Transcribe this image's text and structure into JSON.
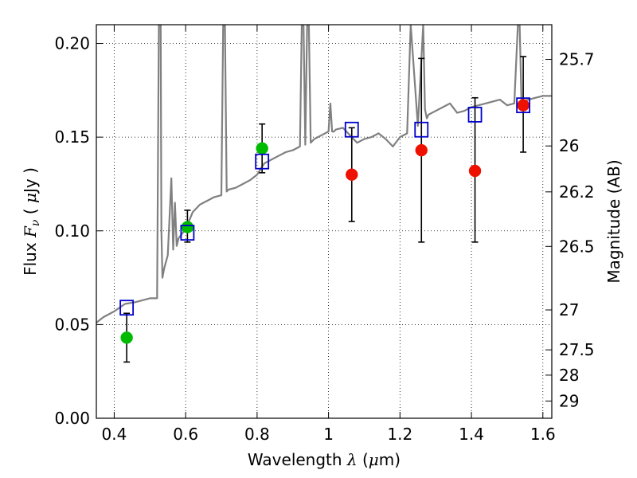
{
  "chart_data": {
    "type": "scatter",
    "xlabel": "Wavelength  λ (μm)",
    "ylabel": "Flux  Fν  ( μJy )",
    "y2label": "Magnitude (AB)",
    "xlim": [
      0.35,
      1.625
    ],
    "ylim": [
      0.0,
      0.21
    ],
    "x_ticks": [
      0.4,
      0.6,
      0.8,
      1.0,
      1.2,
      1.4,
      1.6
    ],
    "x_tick_labels": [
      "0.4",
      "0.6",
      "0.8",
      "1",
      "1.2",
      "1.4",
      "1.6"
    ],
    "y_ticks": [
      0.0,
      0.05,
      0.1,
      0.15,
      0.2
    ],
    "y_tick_labels": [
      "0.00",
      "0.05",
      "0.10",
      "0.15",
      "0.20"
    ],
    "y2_ticks": [
      {
        "label": "25.7",
        "flux": 0.1915
      },
      {
        "label": "26",
        "flux": 0.1453
      },
      {
        "label": "26.2",
        "flux": 0.1208
      },
      {
        "label": "26.5",
        "flux": 0.0917
      },
      {
        "label": "27",
        "flux": 0.0578
      },
      {
        "label": "27.5",
        "flux": 0.0365
      },
      {
        "label": "28",
        "flux": 0.023
      },
      {
        "label": "29",
        "flux": 0.0092
      }
    ],
    "grid": true,
    "series": [
      {
        "style": "line",
        "color": "#808080",
        "x": [
          0.35,
          0.37,
          0.4,
          0.43,
          0.46,
          0.48,
          0.5,
          0.52,
          0.525,
          0.53,
          0.532,
          0.535,
          0.54,
          0.55,
          0.56,
          0.565,
          0.57,
          0.575,
          0.58,
          0.6,
          0.62,
          0.64,
          0.66,
          0.68,
          0.7,
          0.705,
          0.71,
          0.715,
          0.72,
          0.74,
          0.76,
          0.78,
          0.8,
          0.82,
          0.84,
          0.86,
          0.88,
          0.9,
          0.92,
          0.925,
          0.93,
          0.935,
          0.94,
          0.945,
          0.95,
          0.955,
          0.96,
          0.98,
          1.0,
          1.005,
          1.01,
          1.015,
          1.02,
          1.04,
          1.06,
          1.08,
          1.1,
          1.12,
          1.14,
          1.16,
          1.18,
          1.2,
          1.22,
          1.23,
          1.25,
          1.265,
          1.27,
          1.275,
          1.28,
          1.3,
          1.32,
          1.34,
          1.36,
          1.38,
          1.4,
          1.42,
          1.44,
          1.46,
          1.48,
          1.5,
          1.52,
          1.53,
          1.535,
          1.54,
          1.56,
          1.58,
          1.6,
          1.625
        ],
        "y": [
          0.051,
          0.054,
          0.057,
          0.061,
          0.062,
          0.063,
          0.064,
          0.064,
          0.21,
          0.21,
          0.1,
          0.075,
          0.08,
          0.087,
          0.128,
          0.09,
          0.115,
          0.092,
          0.096,
          0.101,
          0.11,
          0.114,
          0.116,
          0.118,
          0.119,
          0.21,
          0.21,
          0.121,
          0.122,
          0.123,
          0.125,
          0.127,
          0.13,
          0.136,
          0.138,
          0.14,
          0.142,
          0.143,
          0.145,
          0.21,
          0.21,
          0.146,
          0.21,
          0.21,
          0.147,
          0.148,
          0.149,
          0.151,
          0.153,
          0.168,
          0.153,
          0.153,
          0.154,
          0.155,
          0.151,
          0.147,
          0.149,
          0.15,
          0.152,
          0.149,
          0.145,
          0.15,
          0.152,
          0.21,
          0.156,
          0.21,
          0.165,
          0.16,
          0.162,
          0.164,
          0.166,
          0.168,
          0.163,
          0.164,
          0.166,
          0.167,
          0.168,
          0.169,
          0.17,
          0.167,
          0.168,
          0.21,
          0.21,
          0.169,
          0.17,
          0.171,
          0.172,
          0.172
        ]
      },
      {
        "style": "open-square",
        "color": "#0000cc",
        "x": [
          0.435,
          0.605,
          0.814,
          1.065,
          1.26,
          1.41,
          1.545
        ],
        "y": [
          0.059,
          0.099,
          0.137,
          0.154,
          0.154,
          0.162,
          0.167
        ]
      },
      {
        "style": "filled-circle",
        "color": "#00bb00",
        "x": [
          0.435,
          0.605,
          0.814
        ],
        "y": [
          0.043,
          0.102,
          0.144
        ]
      },
      {
        "style": "filled-circle",
        "color": "#ee1100",
        "x": [
          1.065,
          1.26,
          1.41,
          1.545
        ],
        "y": [
          0.13,
          0.143,
          0.132,
          0.167
        ]
      },
      {
        "style": "errorbar",
        "color": "#000000",
        "x": [
          0.435,
          0.605,
          0.814,
          1.065,
          1.26,
          1.41,
          1.545
        ],
        "ylow": [
          0.03,
          0.094,
          0.131,
          0.105,
          0.094,
          0.094,
          0.142
        ],
        "yhigh": [
          0.056,
          0.111,
          0.157,
          0.155,
          0.192,
          0.171,
          0.193
        ]
      }
    ]
  }
}
